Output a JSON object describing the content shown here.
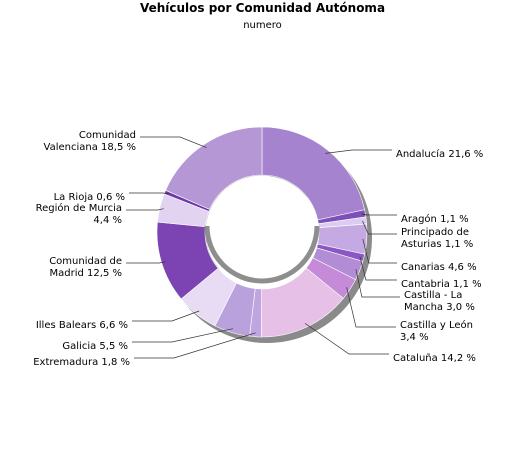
{
  "chart_data": {
    "type": "pie",
    "donut": true,
    "title": "Vehículos por Comunidad Autónoma",
    "subtitle": "numero",
    "legend": "none",
    "slices": [
      {
        "name": "Andalucía",
        "value": 21.6,
        "label": [
          "Andalucía 21,6 %"
        ],
        "color": "#a583ce"
      },
      {
        "name": "Aragón",
        "value": 1.1,
        "label": [
          "Aragón 1,1 %"
        ],
        "color": "#7d4fb8"
      },
      {
        "name": "Principado de Asturias",
        "value": 1.1,
        "label": [
          "Principado de",
          "Asturias 1,1 %"
        ],
        "color": "#dccdf0"
      },
      {
        "name": "Canarias",
        "value": 4.6,
        "label": [
          "Canarias 4,6 %"
        ],
        "color": "#c5a9e3"
      },
      {
        "name": "Cantabria",
        "value": 1.1,
        "label": [
          "Cantabria 1,1 %"
        ],
        "color": "#8a57c4"
      },
      {
        "name": "Castilla - La Mancha",
        "value": 3.0,
        "label": [
          "Castilla - La",
          "Mancha 3,0 %"
        ],
        "color": "#b38cd6"
      },
      {
        "name": "Castilla y León",
        "value": 3.4,
        "label": [
          "Castilla y León",
          "3,4 %"
        ],
        "color": "#c58ad8"
      },
      {
        "name": "Cataluña",
        "value": 14.2,
        "label": [
          "Cataluña 14,2 %"
        ],
        "color": "#e6c0e6"
      },
      {
        "name": "Extremadura",
        "value": 1.8,
        "label": [
          "Extremadura 1,8 %"
        ],
        "color": "#c0a6e0"
      },
      {
        "name": "Galicia",
        "value": 5.5,
        "label": [
          "Galicia 5,5 %"
        ],
        "color": "#b9a2dc"
      },
      {
        "name": "Illes Balears",
        "value": 6.6,
        "label": [
          "Illes Balears 6,6 %"
        ],
        "color": "#e7dcf3"
      },
      {
        "name": "Comunidad de Madrid",
        "value": 12.5,
        "label": [
          "Comunidad de",
          "Madrid 12,5 %"
        ],
        "color": "#7c44b3"
      },
      {
        "name": "Región de Murcia",
        "value": 4.4,
        "label": [
          "Región de Murcia",
          "4,4 %"
        ],
        "color": "#e2d4f1"
      },
      {
        "name": "La Rioja",
        "value": 0.6,
        "label": [
          "La Rioja 0,6 %"
        ],
        "color": "#6e3aa6"
      },
      {
        "name": "Comunidad Valenciana",
        "value": 18.5,
        "label": [
          "Comunidad",
          "Valenciana 18,5 %"
        ],
        "color": "#b597d6"
      }
    ]
  }
}
